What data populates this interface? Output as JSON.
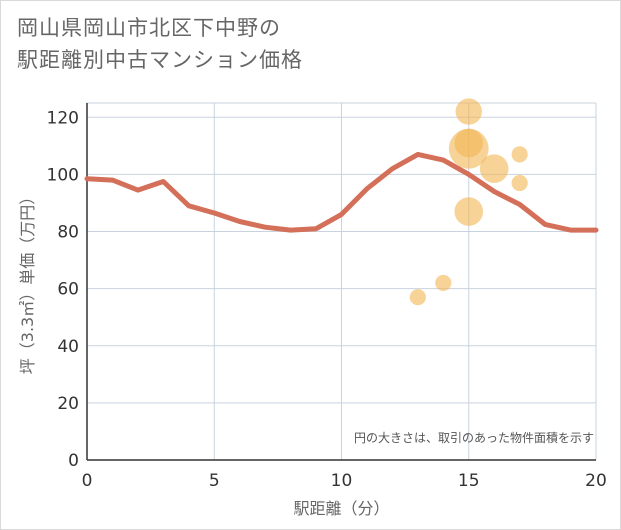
{
  "title_line1": "岡山県岡山市北区下中野の",
  "title_line2": "駅距離別中古マンション価格",
  "chart_data": {
    "type": "line",
    "xlabel": "駅距離（分）",
    "ylabel": "坪（3.3㎡）単価（万円）",
    "xlim": [
      0,
      20
    ],
    "ylim": [
      0,
      125
    ],
    "xticks": [
      0,
      5,
      10,
      15,
      20
    ],
    "yticks": [
      0,
      20,
      40,
      60,
      80,
      100,
      120
    ],
    "grid": true,
    "note": "円の大きさは、取引のあった物件面積を示す",
    "line": {
      "color": "#d4705a",
      "x": [
        0,
        1,
        2,
        3,
        4,
        5,
        6,
        7,
        8,
        9,
        10,
        11,
        12,
        13,
        14,
        15,
        16,
        17,
        18,
        19,
        20
      ],
      "y": [
        98.5,
        98,
        94.5,
        97.5,
        89,
        86.5,
        83.5,
        81.5,
        80.5,
        81,
        86,
        95,
        102,
        107,
        105,
        100,
        94,
        89.5,
        82.5,
        80.5,
        80.5
      ]
    },
    "bubbles": {
      "color": "#f2b654",
      "points": [
        {
          "x": 15,
          "y": 122,
          "size": 2
        },
        {
          "x": 15,
          "y": 109,
          "size": 6
        },
        {
          "x": 15,
          "y": 111,
          "size": 2.5
        },
        {
          "x": 15,
          "y": 87,
          "size": 2.5
        },
        {
          "x": 16,
          "y": 102,
          "size": 2.5
        },
        {
          "x": 17,
          "y": 107,
          "size": 0.4
        },
        {
          "x": 17,
          "y": 97,
          "size": 0.4
        },
        {
          "x": 13,
          "y": 57,
          "size": 0.4
        },
        {
          "x": 14,
          "y": 62,
          "size": 0.4
        }
      ]
    }
  }
}
